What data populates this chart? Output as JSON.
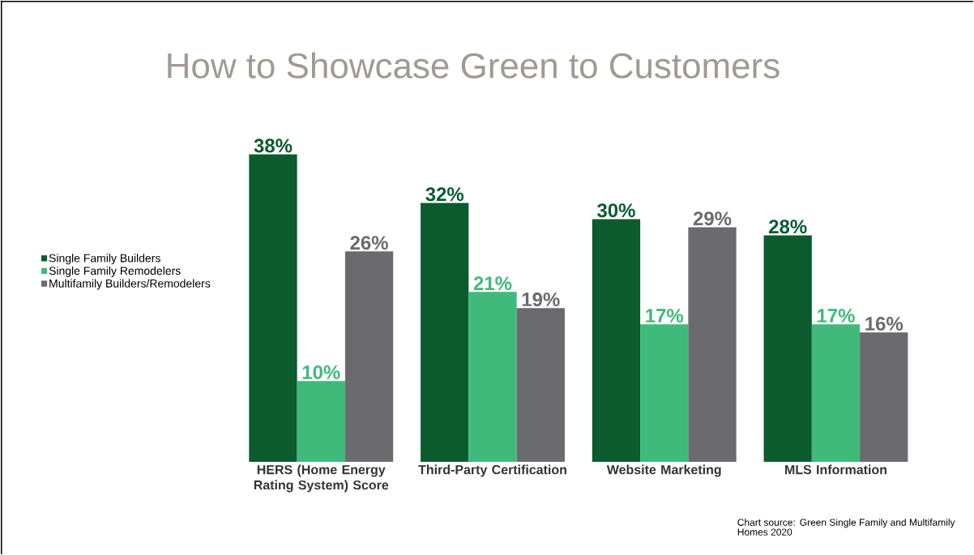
{
  "chart_data": {
    "type": "bar",
    "title": "How to Showcase Green to Customers",
    "categories": [
      "HERS (Home Energy Rating System) Score",
      "Third-Party Certification",
      "Website Marketing",
      "MLS Information"
    ],
    "series": [
      {
        "name": "Single Family Builders",
        "color": "#0b5b2f",
        "values": [
          38,
          32,
          30,
          28
        ],
        "value_labels": [
          "38%",
          "32%",
          "30%",
          "28%"
        ]
      },
      {
        "name": "Single Family Remodelers",
        "color": "#3fba7b",
        "values": [
          10,
          21,
          17,
          17
        ],
        "value_labels": [
          "10%",
          "21%",
          "17%",
          "17%"
        ]
      },
      {
        "name": "Multifamily Builders/Remodelers",
        "color": "#6b6a6e",
        "values": [
          26,
          19,
          29,
          16
        ],
        "value_labels": [
          "26%",
          "19%",
          "29%",
          "16%"
        ]
      }
    ],
    "legend": "left",
    "annotations": [
      "Chart source: Green Single Family and Multifamily Homes 2020"
    ]
  }
}
